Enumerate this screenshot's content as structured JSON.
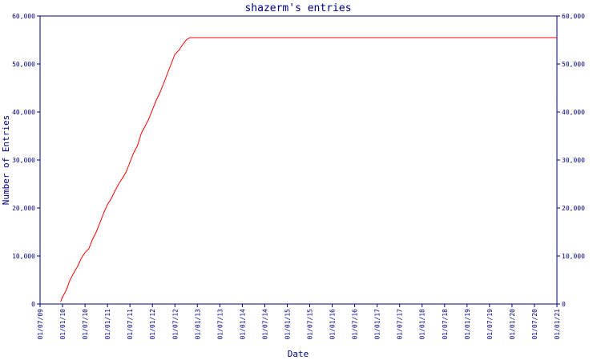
{
  "chart_data": {
    "type": "line",
    "title": "shazerm's entries",
    "xlabel": "Date",
    "ylabel": "Number of Entries",
    "ylim": [
      0,
      60000
    ],
    "xlim": [
      "2009-07-01",
      "2021-01-01"
    ],
    "yticks": [
      "0",
      "10,000",
      "20,000",
      "30,000",
      "40,000",
      "50,000",
      "60,000"
    ],
    "xticks": [
      "01/07/09",
      "01/01/10",
      "01/07/10",
      "01/01/11",
      "01/07/11",
      "01/01/12",
      "01/07/12",
      "01/01/13",
      "01/07/13",
      "01/01/14",
      "01/07/14",
      "01/01/15",
      "01/07/15",
      "01/01/16",
      "01/07/16",
      "01/01/17",
      "01/07/17",
      "01/01/18",
      "01/07/18",
      "01/01/19",
      "01/07/19",
      "01/01/20",
      "01/07/20",
      "01/01/21"
    ],
    "grid": false,
    "legend": "none",
    "series": [
      {
        "color": "#ff0000",
        "x": [
          "2009-12-15",
          "2010-01-01",
          "2010-02-01",
          "2010-03-01",
          "2010-04-01",
          "2010-05-01",
          "2010-06-01",
          "2010-07-01",
          "2010-08-01",
          "2010-09-01",
          "2010-10-01",
          "2010-11-01",
          "2010-12-01",
          "2011-01-01",
          "2011-02-01",
          "2011-03-01",
          "2011-04-01",
          "2011-05-01",
          "2011-06-01",
          "2011-07-01",
          "2011-08-01",
          "2011-09-01",
          "2011-10-01",
          "2011-11-01",
          "2011-12-01",
          "2012-01-01",
          "2012-02-01",
          "2012-03-01",
          "2012-04-01",
          "2012-05-01",
          "2012-06-01",
          "2012-07-01",
          "2012-08-01",
          "2012-09-01",
          "2012-10-01",
          "2012-11-01",
          "2012-12-01",
          "2013-01-01",
          "2013-02-01",
          "2013-03-01",
          "2013-04-01",
          "2013-05-01",
          "2013-06-01",
          "2013-07-01",
          "2013-08-01",
          "2021-01-01"
        ],
        "y": [
          500,
          1500,
          3000,
          5000,
          6500,
          7800,
          9500,
          10700,
          11500,
          13500,
          15000,
          17000,
          19000,
          20800,
          22000,
          23500,
          25000,
          26200,
          27500,
          29500,
          31500,
          33000,
          35500,
          37000,
          38500,
          40500,
          42500,
          44000,
          46000,
          48000,
          50000,
          52000,
          52800,
          54000,
          55000,
          55500,
          55500,
          55500,
          55500,
          55500,
          55500,
          55500,
          55500,
          55500,
          55500,
          55500
        ]
      }
    ]
  }
}
